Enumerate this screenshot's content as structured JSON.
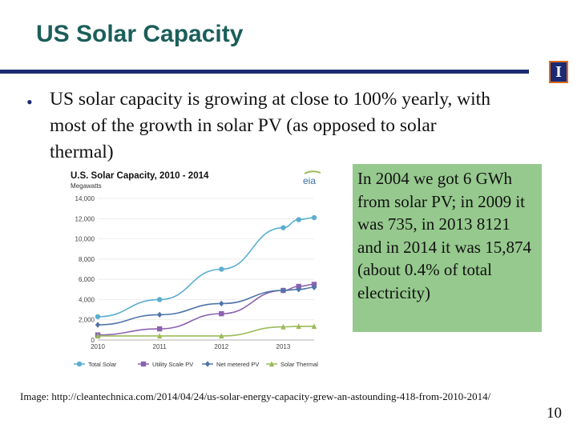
{
  "slide": {
    "title": "US Solar Capacity",
    "bullet": "US solar capacity is growing at close to 100% yearly, with most of the growth in solar PV (as opposed to solar thermal)",
    "note": "In 2004 we got 6 GWh from solar PV; in 2009 it was 735, in 2013 8121 and in 2014 it was 15,874 (about 0.4% of total electricity)",
    "caption": "Image: http://cleantechnica.com/2014/04/24/us-solar-energy-capacity-grew-an-astounding-418-from-2010-2014/",
    "page_number": "10",
    "logo_letter": "I",
    "colors": {
      "title": "#1b5e5a",
      "rule": "#1a2a73",
      "note_bg": "#96c98e",
      "logo_border": "#e06a1a"
    }
  },
  "chart_data": {
    "type": "line",
    "title": "U.S. Solar Capacity, 2010 - 2014",
    "ylabel": "Megawatts",
    "source_logo": "eia",
    "x": [
      2010,
      2011,
      2012,
      2013,
      2013.25,
      2013.5
    ],
    "xticks": [
      "2010",
      "2011",
      "2012",
      "2013"
    ],
    "yticks": [
      "0",
      "2,000",
      "4,000",
      "6,000",
      "8,000",
      "10,000",
      "12,000",
      "14,000"
    ],
    "ylim": [
      0,
      14000
    ],
    "legend_position": "bottom",
    "series": [
      {
        "name": "Total Solar",
        "color": "#5aaed0",
        "marker": "circle",
        "values": [
          2300,
          4000,
          7000,
          11100,
          11900,
          12100
        ]
      },
      {
        "name": "Utility Scale PV",
        "color": "#8a62b0",
        "marker": "square",
        "values": [
          500,
          1100,
          2600,
          4900,
          5300,
          5500
        ]
      },
      {
        "name": "Net metered PV",
        "color": "#4f75a8",
        "marker": "diamond",
        "values": [
          1500,
          2500,
          3600,
          4900,
          5000,
          5200
        ]
      },
      {
        "name": "Solar Thermal",
        "color": "#9bbb59",
        "marker": "triangle",
        "values": [
          400,
          400,
          400,
          1300,
          1350,
          1350
        ]
      }
    ]
  }
}
